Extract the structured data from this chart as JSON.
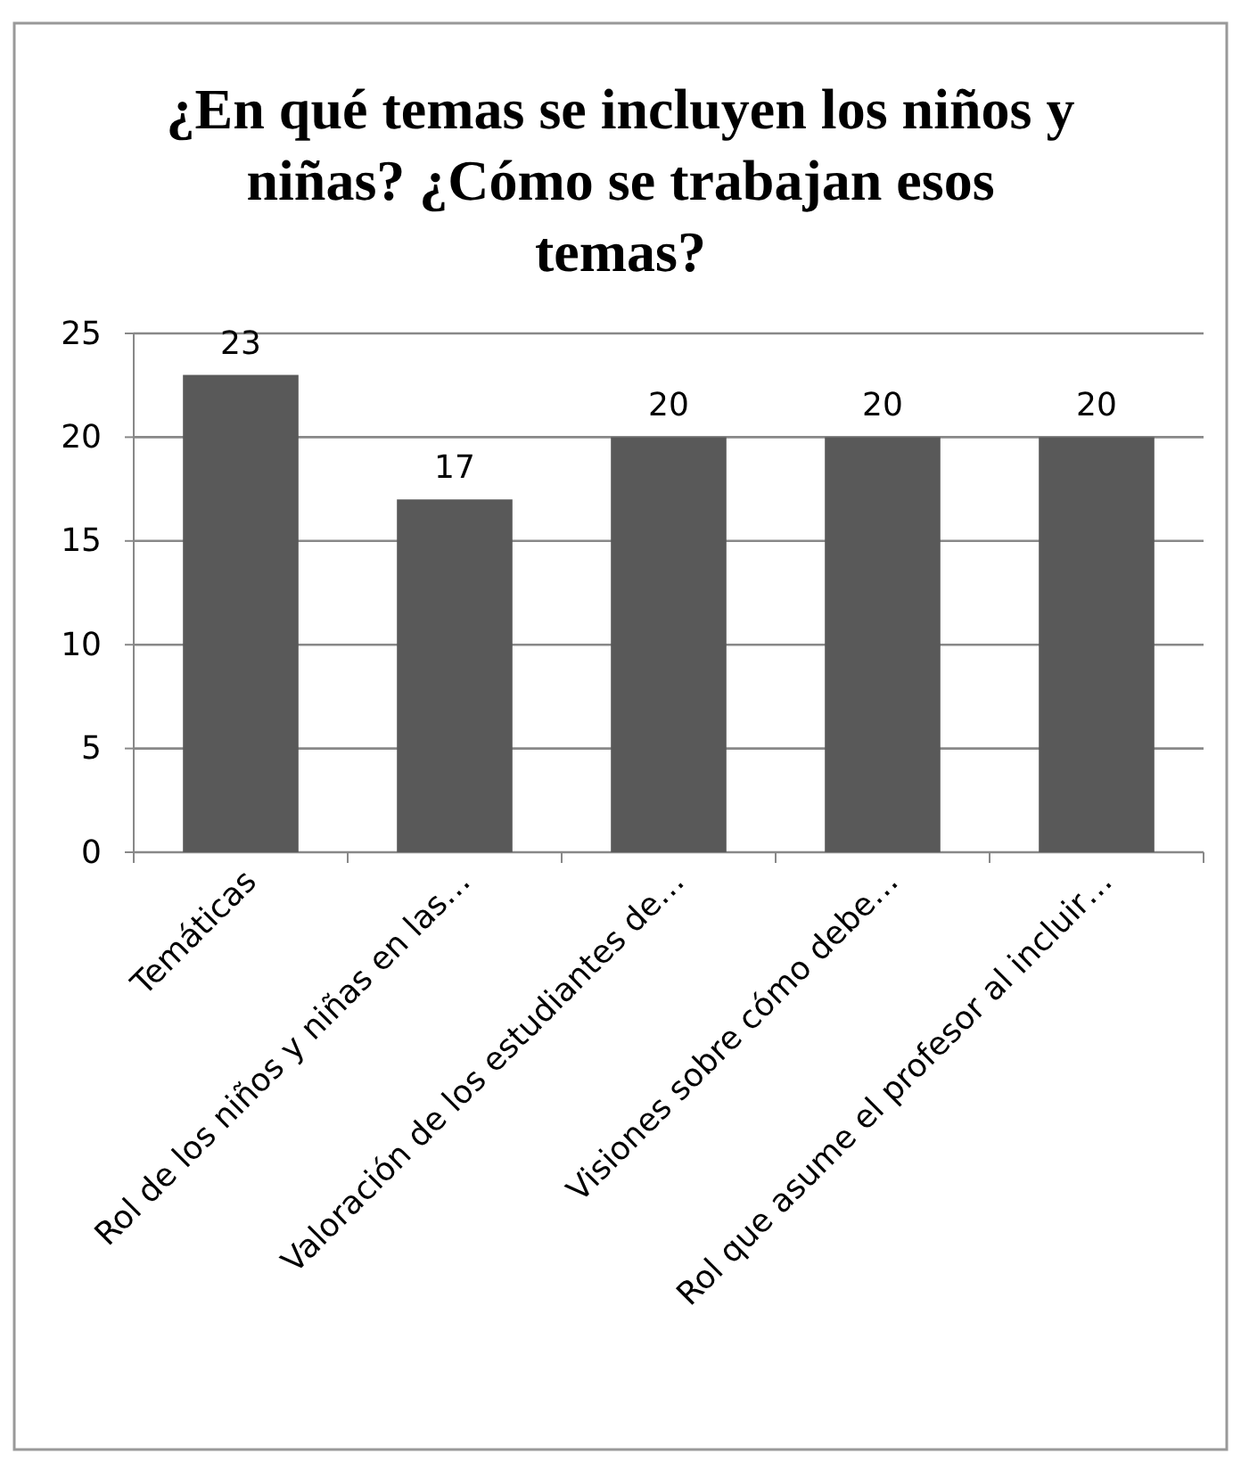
{
  "chart_data": {
    "type": "bar",
    "title": "¿En qué temas se incluyen los niños y niñas? ¿Cómo se trabajan esos temas?",
    "categories": [
      "Temáticas",
      "Rol de los niños y niñas en las…",
      "Valoración de los estudiantes de…",
      "Visiones sobre cómo debe…",
      "Rol que asume el profesor al incluir…"
    ],
    "values": [
      23,
      17,
      20,
      20,
      20
    ],
    "color": "#595959",
    "ylim": [
      0,
      25
    ],
    "yticks": [
      0,
      5,
      10,
      15,
      20,
      25
    ],
    "grid": "y",
    "data_labels": true
  }
}
